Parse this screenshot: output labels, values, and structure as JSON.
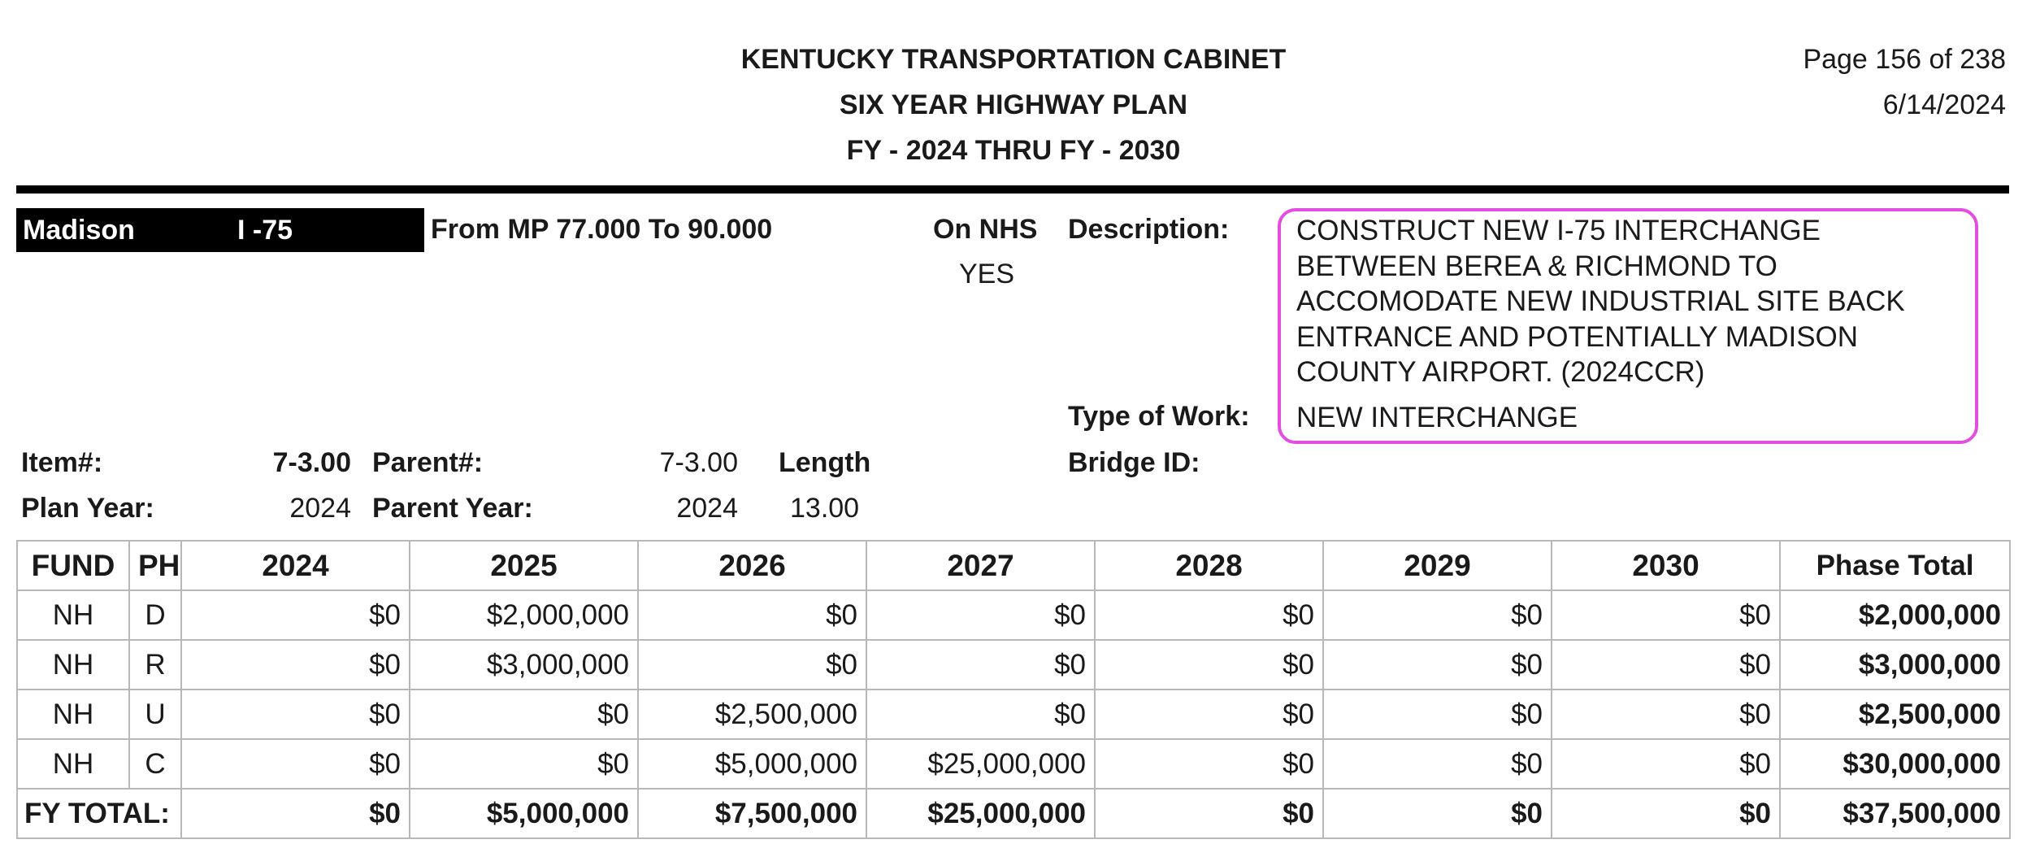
{
  "header": {
    "line1": "KENTUCKY TRANSPORTATION CABINET",
    "line2": "SIX YEAR HIGHWAY PLAN",
    "line3": "FY - 2024 THRU FY - 2030",
    "page": "Page 156 of 238",
    "date": "6/14/2024"
  },
  "project": {
    "county": "Madison",
    "route": "I -75",
    "limits": "From MP 77.000 To 90.000",
    "on_nhs_label": "On NHS",
    "on_nhs_value": "YES",
    "description_label": "Description:",
    "description": "CONSTRUCT NEW I-75 INTERCHANGE BETWEEN BEREA & RICHMOND TO ACCOMODATE NEW INDUSTRIAL SITE BACK ENTRANCE AND POTENTIALLY MADISON COUNTY AIRPORT. (2024CCR)",
    "type_of_work_label": "Type of Work:",
    "type_of_work": "NEW INTERCHANGE",
    "item_label": "Item#:",
    "item": "7-3.00",
    "parent_label": "Parent#:",
    "parent": "7-3.00",
    "length_label": "Length",
    "length": "13.00",
    "bridge_label": "Bridge ID:",
    "plan_year_label": "Plan Year:",
    "plan_year": "2024",
    "parent_year_label": "Parent Year:",
    "parent_year": "2024"
  },
  "table": {
    "headers": [
      "FUND",
      "PH",
      "2024",
      "2025",
      "2026",
      "2027",
      "2028",
      "2029",
      "2030",
      "Phase Total"
    ],
    "rows": [
      [
        "NH",
        "D",
        "$0",
        "$2,000,000",
        "$0",
        "$0",
        "$0",
        "$0",
        "$0",
        "$2,000,000"
      ],
      [
        "NH",
        "R",
        "$0",
        "$3,000,000",
        "$0",
        "$0",
        "$0",
        "$0",
        "$0",
        "$3,000,000"
      ],
      [
        "NH",
        "U",
        "$0",
        "$0",
        "$2,500,000",
        "$0",
        "$0",
        "$0",
        "$0",
        "$2,500,000"
      ],
      [
        "NH",
        "C",
        "$0",
        "$0",
        "$5,000,000",
        "$25,000,000",
        "$0",
        "$0",
        "$0",
        "$30,000,000"
      ]
    ],
    "total_label": "FY TOTAL:",
    "totals": [
      "$0",
      "$5,000,000",
      "$7,500,000",
      "$25,000,000",
      "$0",
      "$0",
      "$0",
      "$37,500,000"
    ]
  }
}
